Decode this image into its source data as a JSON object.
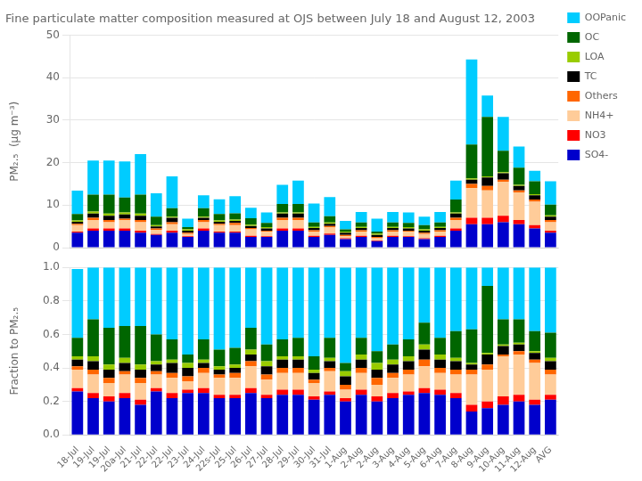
{
  "chart_data": [
    {
      "type": "bar",
      "title": "Fine particulate matter composition measured at OJS between July 18 and August 12, 2003",
      "categories": [
        "18-Jul",
        "19-Jul",
        "19-Jul",
        "20a-Jul",
        "21-Jul",
        "22-Jul",
        "22-Jul",
        "23-Jul",
        "24-Jul",
        "22s-Jul",
        "25-Jul",
        "26-Jul",
        "27-Jul",
        "28-Jul",
        "29-Jul",
        "30-Jul",
        "31-Jul",
        "1-Aug",
        "2-Aug",
        "2-Aug",
        "3-Aug",
        "4-Aug",
        "5-Aug",
        "6-Aug",
        "7-Aug",
        "8-Aug",
        "9-Aug",
        "10-Aug",
        "11-Aug",
        "12-Aug",
        "AVG"
      ],
      "series": [
        {
          "name": "SO4-",
          "color": "#0000CC",
          "values": [
            3.5,
            4.0,
            4.0,
            4.0,
            3.5,
            3.0,
            3.5,
            2.5,
            4.0,
            3.5,
            3.5,
            2.5,
            2.5,
            4.0,
            4.0,
            2.5,
            3.0,
            2.0,
            2.5,
            1.5,
            2.5,
            2.5,
            2.0,
            2.5,
            4.0,
            5.5,
            5.5,
            6.0,
            5.5,
            4.5,
            3.5
          ]
        },
        {
          "name": "NO3",
          "color": "#FF0000",
          "values": [
            0.3,
            0.5,
            0.5,
            0.5,
            0.5,
            0.2,
            0.5,
            0.2,
            0.5,
            0.3,
            0.3,
            0.3,
            0.2,
            0.5,
            0.5,
            0.3,
            0.3,
            0.2,
            0.3,
            0.2,
            0.3,
            0.2,
            0.2,
            0.3,
            0.5,
            1.5,
            1.5,
            1.5,
            1.0,
            0.8,
            0.5
          ]
        },
        {
          "name": "NH4+",
          "color": "#FFCC99",
          "values": [
            1.5,
            2.0,
            1.5,
            2.0,
            2.0,
            1.0,
            1.5,
            0.5,
            1.5,
            1.5,
            1.5,
            1.5,
            1.0,
            2.0,
            2.0,
            1.0,
            1.5,
            0.5,
            1.0,
            0.5,
            1.0,
            1.0,
            1.0,
            1.0,
            2.0,
            7.0,
            6.5,
            8.0,
            6.5,
            5.5,
            2.0
          ]
        },
        {
          "name": "Others",
          "color": "#FF6600",
          "values": [
            0.3,
            0.5,
            0.5,
            0.3,
            0.5,
            0.3,
            0.5,
            0.3,
            0.5,
            0.3,
            0.5,
            0.3,
            0.3,
            0.5,
            0.5,
            0.3,
            0.3,
            0.3,
            0.3,
            0.3,
            0.3,
            0.3,
            0.3,
            0.3,
            0.5,
            1.0,
            1.0,
            0.5,
            0.5,
            0.5,
            0.5
          ]
        },
        {
          "name": "TC",
          "color": "#000000",
          "values": [
            0.5,
            1.0,
            1.0,
            1.0,
            1.0,
            0.5,
            1.0,
            0.5,
            0.5,
            0.5,
            0.5,
            0.5,
            0.5,
            1.0,
            1.0,
            0.5,
            0.5,
            0.5,
            0.5,
            0.5,
            0.5,
            0.5,
            0.5,
            0.5,
            1.0,
            1.0,
            2.0,
            1.5,
            1.0,
            1.0,
            0.8
          ]
        },
        {
          "name": "LOA",
          "color": "#99CC00",
          "values": [
            0.3,
            0.5,
            0.5,
            0.5,
            0.5,
            0.3,
            0.3,
            0.3,
            0.3,
            0.3,
            0.3,
            0.3,
            0.3,
            0.3,
            0.3,
            0.3,
            0.3,
            0.3,
            0.3,
            0.3,
            0.3,
            0.3,
            0.3,
            0.3,
            0.3,
            0.3,
            0.3,
            0.3,
            0.3,
            0.3,
            0.3
          ]
        },
        {
          "name": "OC",
          "color": "#006600",
          "values": [
            1.5,
            4.0,
            4.5,
            3.5,
            4.5,
            2.0,
            2.0,
            0.5,
            2.0,
            1.5,
            1.5,
            1.5,
            1.0,
            2.0,
            2.0,
            1.0,
            1.5,
            0.5,
            1.0,
            0.5,
            1.0,
            1.0,
            1.0,
            1.0,
            3.0,
            8.0,
            14.0,
            5.0,
            4.0,
            3.0,
            2.5
          ]
        },
        {
          "name": "OOPanic",
          "color": "#00CCFF",
          "values": [
            5.5,
            8.0,
            8.0,
            8.5,
            9.5,
            5.5,
            7.5,
            2.0,
            3.0,
            3.5,
            4.0,
            2.5,
            2.5,
            4.5,
            5.5,
            4.5,
            4.5,
            2.0,
            2.5,
            3.0,
            2.5,
            2.5,
            2.0,
            2.5,
            4.5,
            20.0,
            5.0,
            8.0,
            5.0,
            2.5,
            5.5
          ]
        }
      ],
      "ylabel": "PM₂.₅  (μg m⁻³)",
      "ylim": [
        0,
        50
      ],
      "yticks": [
        0,
        10,
        20,
        30,
        40,
        50
      ],
      "stacked": true,
      "grid": true,
      "legend": "upper right",
      "tick_labels": "y"
    },
    {
      "type": "bar",
      "categories": [
        "18-Jul",
        "19-Jul",
        "19-Jul",
        "20a-Jul",
        "21-Jul",
        "22-Jul",
        "22-Jul",
        "23-Jul",
        "24-Jul",
        "22s-Jul",
        "25-Jul",
        "26-Jul",
        "27-Jul",
        "28-Jul",
        "29-Jul",
        "30-Jul",
        "31-Jul",
        "1-Aug",
        "2-Aug",
        "2-Aug",
        "3-Aug",
        "4-Aug",
        "5-Aug",
        "6-Aug",
        "7-Aug",
        "8-Aug",
        "9-Aug",
        "10-Aug",
        "11-Aug",
        "12-Aug",
        "AVG"
      ],
      "series": [
        {
          "name": "SO4-",
          "color": "#0000CC",
          "values": [
            0.26,
            0.22,
            0.2,
            0.22,
            0.18,
            0.26,
            0.22,
            0.25,
            0.25,
            0.22,
            0.22,
            0.25,
            0.22,
            0.24,
            0.24,
            0.21,
            0.24,
            0.2,
            0.24,
            0.2,
            0.22,
            0.24,
            0.25,
            0.24,
            0.22,
            0.14,
            0.16,
            0.18,
            0.2,
            0.18,
            0.21
          ]
        },
        {
          "name": "NO3",
          "color": "#FF0000",
          "values": [
            0.02,
            0.03,
            0.03,
            0.03,
            0.03,
            0.02,
            0.03,
            0.02,
            0.03,
            0.02,
            0.02,
            0.03,
            0.02,
            0.03,
            0.03,
            0.02,
            0.02,
            0.02,
            0.03,
            0.03,
            0.03,
            0.02,
            0.03,
            0.03,
            0.03,
            0.04,
            0.04,
            0.05,
            0.04,
            0.03,
            0.03
          ]
        },
        {
          "name": "NH4+",
          "color": "#FFCC99",
          "values": [
            0.11,
            0.11,
            0.08,
            0.11,
            0.1,
            0.08,
            0.09,
            0.05,
            0.09,
            0.1,
            0.1,
            0.13,
            0.09,
            0.1,
            0.1,
            0.08,
            0.12,
            0.05,
            0.1,
            0.07,
            0.09,
            0.1,
            0.13,
            0.1,
            0.11,
            0.18,
            0.19,
            0.24,
            0.24,
            0.22,
            0.12
          ]
        },
        {
          "name": "Others",
          "color": "#FF6600",
          "values": [
            0.02,
            0.03,
            0.03,
            0.02,
            0.03,
            0.02,
            0.03,
            0.03,
            0.03,
            0.02,
            0.03,
            0.03,
            0.03,
            0.03,
            0.03,
            0.02,
            0.02,
            0.03,
            0.03,
            0.04,
            0.03,
            0.03,
            0.04,
            0.03,
            0.03,
            0.03,
            0.03,
            0.01,
            0.02,
            0.02,
            0.03
          ]
        },
        {
          "name": "TC",
          "color": "#000000",
          "values": [
            0.04,
            0.05,
            0.05,
            0.05,
            0.05,
            0.04,
            0.06,
            0.05,
            0.03,
            0.03,
            0.03,
            0.04,
            0.05,
            0.05,
            0.05,
            0.04,
            0.04,
            0.05,
            0.05,
            0.05,
            0.05,
            0.05,
            0.06,
            0.05,
            0.05,
            0.03,
            0.06,
            0.05,
            0.04,
            0.04,
            0.05
          ]
        },
        {
          "name": "LOA",
          "color": "#99CC00",
          "values": [
            0.02,
            0.03,
            0.03,
            0.03,
            0.03,
            0.02,
            0.02,
            0.03,
            0.02,
            0.02,
            0.02,
            0.03,
            0.03,
            0.02,
            0.02,
            0.02,
            0.02,
            0.03,
            0.03,
            0.04,
            0.03,
            0.03,
            0.03,
            0.03,
            0.02,
            0.01,
            0.01,
            0.01,
            0.01,
            0.01,
            0.02
          ]
        },
        {
          "name": "OC",
          "color": "#006600",
          "values": [
            0.11,
            0.22,
            0.22,
            0.19,
            0.23,
            0.16,
            0.12,
            0.05,
            0.12,
            0.1,
            0.1,
            0.13,
            0.1,
            0.1,
            0.11,
            0.08,
            0.12,
            0.05,
            0.1,
            0.07,
            0.09,
            0.1,
            0.13,
            0.1,
            0.16,
            0.2,
            0.4,
            0.15,
            0.14,
            0.12,
            0.15
          ]
        },
        {
          "name": "OOPanic",
          "color": "#00CCFF",
          "values": [
            0.41,
            0.31,
            0.36,
            0.35,
            0.35,
            0.4,
            0.43,
            0.52,
            0.43,
            0.49,
            0.48,
            0.36,
            0.46,
            0.43,
            0.42,
            0.53,
            0.42,
            0.57,
            0.42,
            0.5,
            0.46,
            0.43,
            0.33,
            0.42,
            0.38,
            0.37,
            0.11,
            0.31,
            0.31,
            0.38,
            0.39
          ]
        }
      ],
      "ylabel": "Fraction to PM₂.₅",
      "ylim": [
        0.0,
        1.0
      ],
      "yticks": [
        {
          "value": 0,
          "label": "0.0"
        },
        0.2,
        0.4,
        0.6,
        0.8,
        {
          "value": 1,
          "label": "1.0"
        }
      ],
      "stacked": true,
      "grid": true
    }
  ]
}
